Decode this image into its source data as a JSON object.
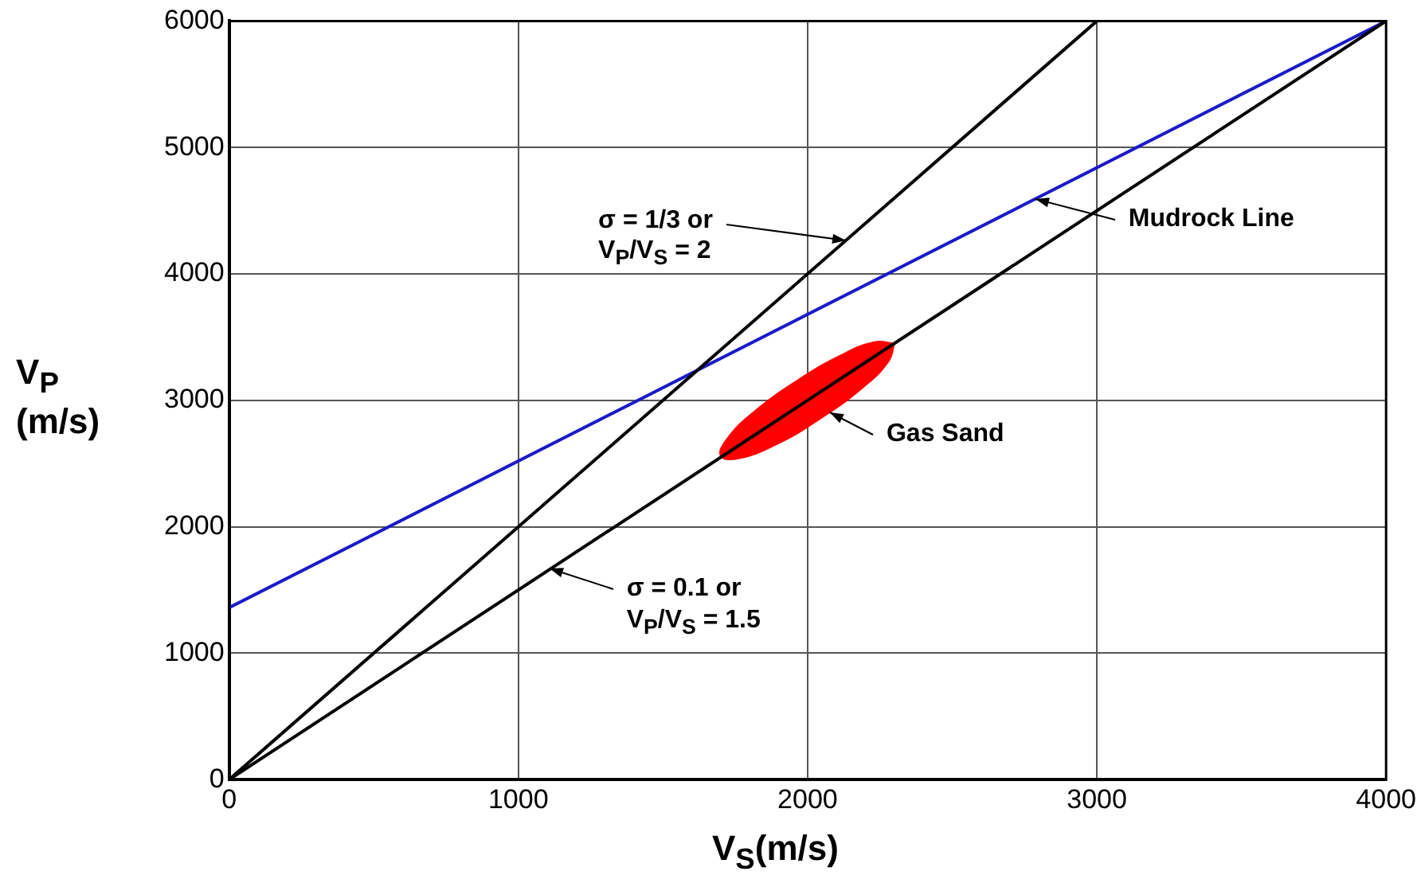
{
  "chart_data": {
    "type": "line",
    "xlabel": "V$_{S}$(m/s)",
    "ylabel": "V$_{P}$\n(m/s)",
    "xlim": [
      0,
      4000
    ],
    "xticks": [
      0,
      1000,
      2000,
      3000,
      4000
    ],
    "ylim": [
      0,
      6000
    ],
    "yticks": [
      0,
      1000,
      2000,
      3000,
      4000,
      5000,
      6000
    ],
    "grid": true,
    "marker": "none",
    "line_style": "solid",
    "series": [
      {
        "color": "#000000",
        "x": [
          0,
          3000
        ],
        "values": [
          0,
          6000
        ]
      },
      {
        "color": "#000000",
        "x": [
          0,
          4000
        ],
        "values": [
          0,
          6000
        ]
      },
      {
        "color": "#1a1ac8",
        "x": [
          0,
          4000
        ],
        "values": [
          1360,
          6000
        ]
      },
      {
        "type": "area",
        "color": "#ff0000",
        "x": [
          2300,
          2280,
          2190,
          2040,
          1890,
          1760,
          1700,
          1720,
          1810,
          1960,
          2110,
          2230
        ],
        "values": [
          3450,
          3310,
          3100,
          2850,
          2650,
          2540,
          2560,
          2690,
          2900,
          3150,
          3350,
          3460
        ]
      }
    ],
    "annotations": [
      {
        "text": "σ = 1/3 or\nV$_{P}$/V$_{S}$ = 2",
        "x": 2130,
        "y": 4270
      },
      {
        "text": "Mudrock Line",
        "x": 2790,
        "y": 4596
      },
      {
        "text": "Gas Sand",
        "x": 2080,
        "y": 2910
      },
      {
        "text": "σ = 0.1 or\nV$_{P}$/V$_{S}$ = 1.5",
        "x": 1110,
        "y": 1665
      }
    ]
  }
}
